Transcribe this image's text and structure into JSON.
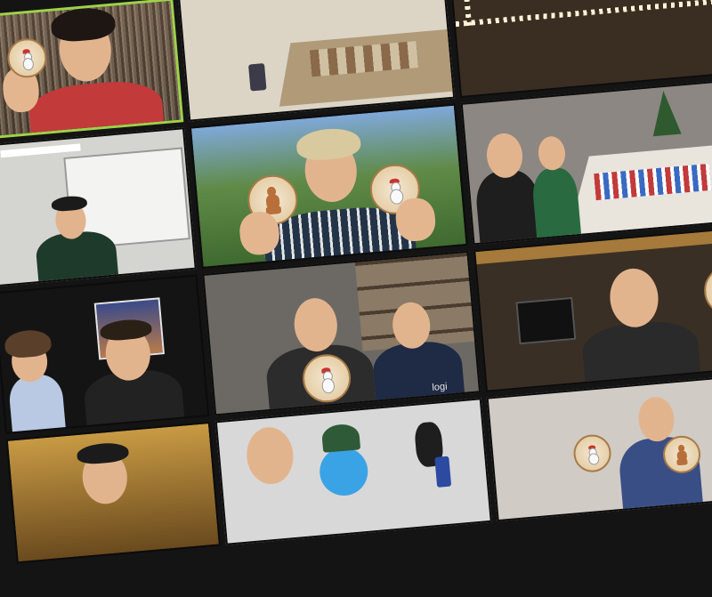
{
  "image": {
    "description_tags": [
      "video-call-grid",
      "holiday-ornament-painting"
    ],
    "tiles": [
      {
        "name": "tile-woman-red-sweater",
        "speaker": true,
        "bg": "#5a4a3a"
      },
      {
        "name": "tile-office-desk",
        "speaker": false,
        "bg": "#d9d2c3"
      },
      {
        "name": "tile-lights-dark-room",
        "speaker": false,
        "bg": "#3a2d22"
      },
      {
        "name": "tile-office-whiteboard",
        "speaker": false,
        "bg": "#d6d6d2"
      },
      {
        "name": "tile-blond-man-two-ornaments",
        "speaker": false,
        "bg": "#4f7a3c"
      },
      {
        "name": "tile-family-painting-table",
        "speaker": false,
        "bg": "#8b8680"
      },
      {
        "name": "tile-two-men-bookshelf",
        "speaker": false,
        "bg": "#6c6965"
      },
      {
        "name": "tile-man-headphones",
        "speaker": false,
        "bg": "#3b3026"
      },
      {
        "name": "tile-man-with-bob-ross-cutout",
        "speaker": false,
        "bg": "#141414"
      },
      {
        "name": "tile-bearded-man-snowman-toy",
        "speaker": false,
        "bg": "#d8d8d8"
      },
      {
        "name": "tile-boy-two-ornaments",
        "speaker": false,
        "bg": "#cfcac2"
      },
      {
        "name": "tile-ornate-gold-ceiling",
        "speaker": false,
        "bg": "#a5762c"
      }
    ],
    "visible_text": {
      "camera_brand": "logi"
    },
    "colors": {
      "speaker_highlight": "#9fd24a",
      "gap": "#141414"
    }
  }
}
